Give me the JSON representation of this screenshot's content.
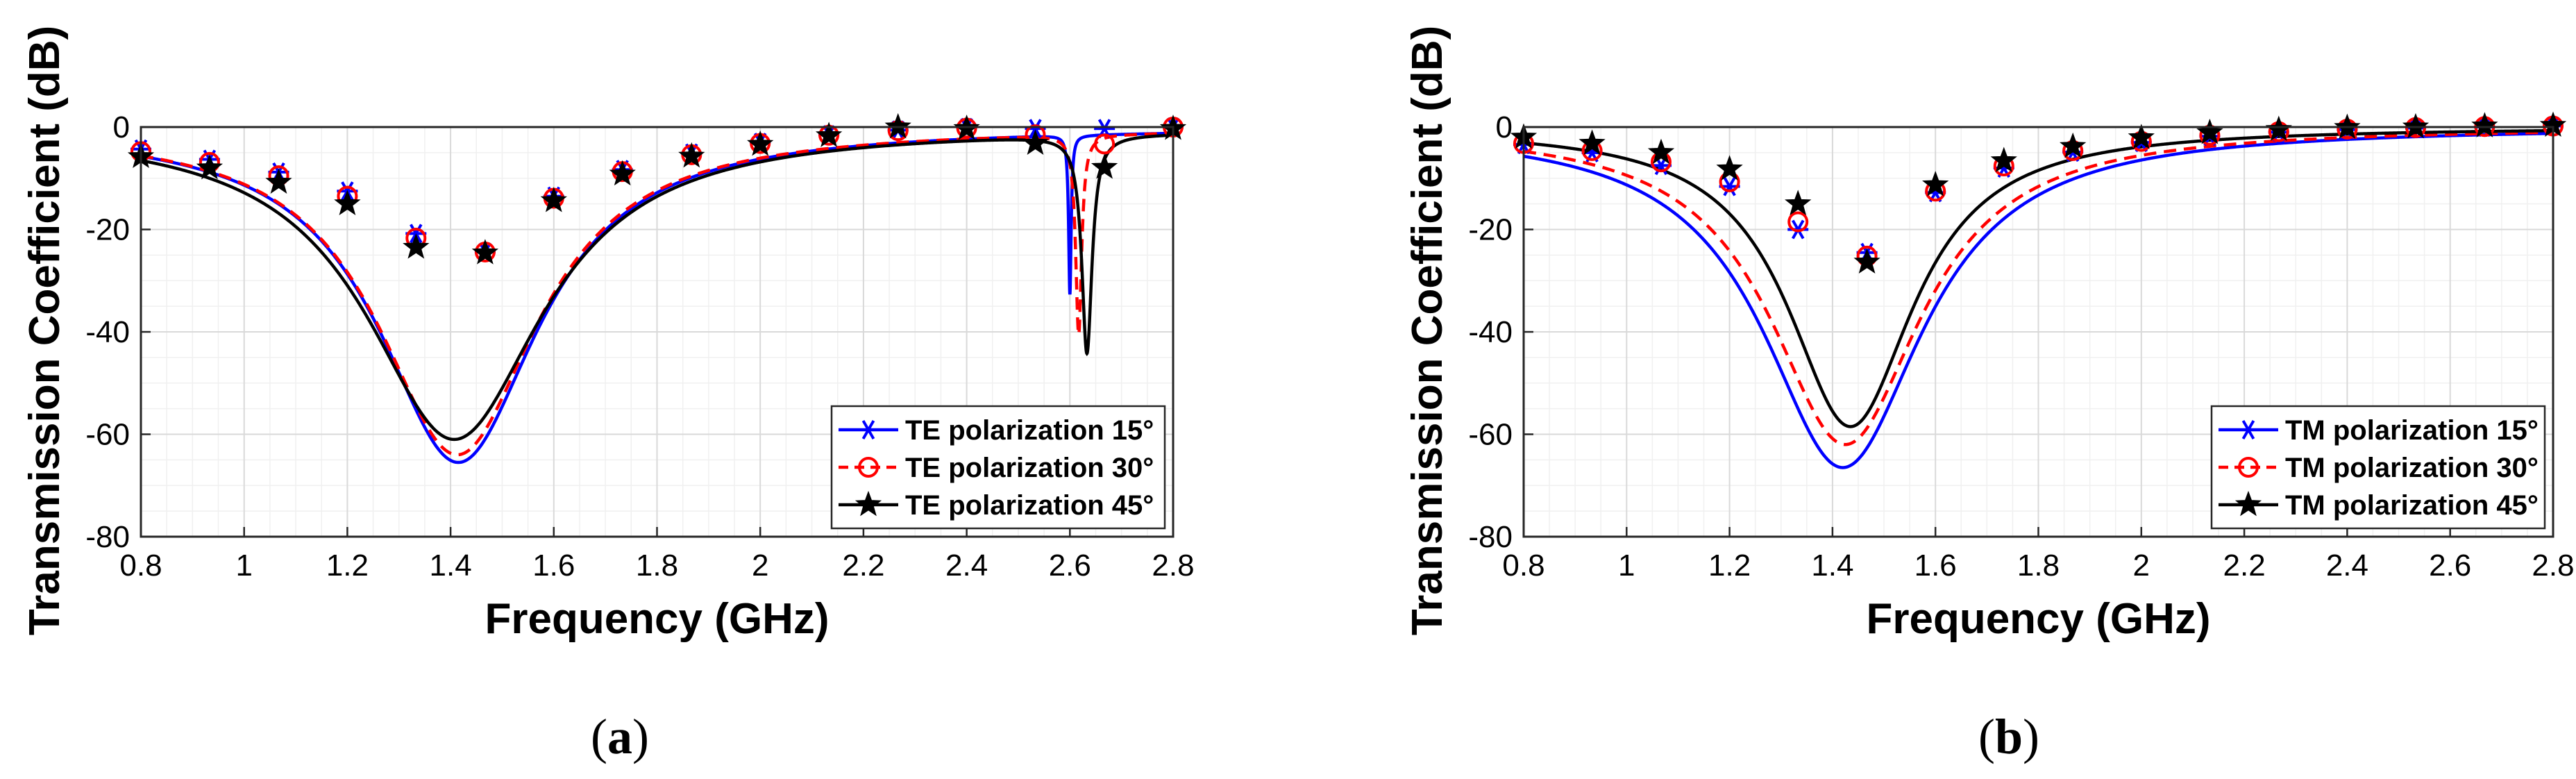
{
  "chart_data": [
    {
      "type": "line",
      "panel": "a",
      "caption": {
        "open": "(",
        "letter": "a",
        "close": ")"
      },
      "xlabel": "Frequency (GHz)",
      "ylabel": "Transmission Coefficient (dB)",
      "xlim": [
        0.8,
        2.8
      ],
      "ylim": [
        -80,
        0
      ],
      "xticks": [
        0.8,
        1,
        1.2,
        1.4,
        1.6,
        1.8,
        2,
        2.2,
        2.4,
        2.6,
        2.8
      ],
      "yticks": [
        0,
        -20,
        -40,
        -60,
        -80
      ],
      "grid": true,
      "legend_position": "bottom-right",
      "series": [
        {
          "name": "TE polarization 15°",
          "color": "#0000ff",
          "dash": "solid",
          "marker": "asterisk",
          "resonances": [
            {
              "f": 1.415,
              "depth": -65.5,
              "width": 0.19
            },
            {
              "f": 2.6,
              "depth": -31,
              "width": 0.003
            }
          ],
          "marker_points": [
            [
              0.8,
              -4.3
            ],
            [
              0.933,
              -6.3
            ],
            [
              1.067,
              -8.8
            ],
            [
              1.2,
              -12.5
            ],
            [
              1.333,
              -20.8
            ],
            [
              1.467,
              -24.4
            ],
            [
              1.6,
              -13.5
            ],
            [
              1.733,
              -8.3
            ],
            [
              1.867,
              -5.1
            ],
            [
              2,
              -3.0
            ],
            [
              2.133,
              -1.5
            ],
            [
              2.267,
              -0.6
            ],
            [
              2.4,
              -0.1
            ],
            [
              2.533,
              -0.3
            ],
            [
              2.667,
              -0.3
            ],
            [
              2.8,
              0
            ]
          ]
        },
        {
          "name": "TE polarization 30°",
          "color": "#ff0000",
          "dash": "dashed",
          "marker": "circle",
          "resonances": [
            {
              "f": 1.413,
              "depth": -64,
              "width": 0.19
            },
            {
              "f": 2.617,
              "depth": -39,
              "width": 0.007
            }
          ],
          "marker_points": [
            [
              0.8,
              -4.8
            ],
            [
              0.933,
              -6.9
            ],
            [
              1.067,
              -9.5
            ],
            [
              1.2,
              -13.5
            ],
            [
              1.333,
              -21.7
            ],
            [
              1.467,
              -24.4
            ],
            [
              1.6,
              -13.9
            ],
            [
              1.733,
              -8.7
            ],
            [
              1.867,
              -5.4
            ],
            [
              2,
              -3.2
            ],
            [
              2.133,
              -1.6
            ],
            [
              2.267,
              -0.7
            ],
            [
              2.4,
              -0.2
            ],
            [
              2.533,
              -1.5
            ],
            [
              2.667,
              -3.3
            ],
            [
              2.8,
              0
            ]
          ]
        },
        {
          "name": "TE polarization 45°",
          "color": "#000000",
          "dash": "solid",
          "marker": "star",
          "resonances": [
            {
              "f": 1.407,
              "depth": -61,
              "width": 0.21
            },
            {
              "f": 2.633,
              "depth": -42.5,
              "width": 0.012
            }
          ],
          "marker_points": [
            [
              0.8,
              -5.8
            ],
            [
              0.933,
              -8.0
            ],
            [
              1.067,
              -10.8
            ],
            [
              1.2,
              -15.0
            ],
            [
              1.333,
              -23.5
            ],
            [
              1.467,
              -24.6
            ],
            [
              1.6,
              -14.4
            ],
            [
              1.733,
              -9.2
            ],
            [
              1.867,
              -5.7
            ],
            [
              2,
              -3.4
            ],
            [
              2.133,
              -1.7
            ],
            [
              2.267,
              0
            ],
            [
              2.4,
              -0.3
            ],
            [
              2.533,
              -3.2
            ],
            [
              2.667,
              -7.9
            ],
            [
              2.8,
              -0.3
            ]
          ]
        }
      ]
    },
    {
      "type": "line",
      "panel": "b",
      "caption": {
        "open": "(",
        "letter": "b",
        "close": ")"
      },
      "xlabel": "Frequency (GHz)",
      "ylabel": "Transmission Coefficient (dB)",
      "xlim": [
        0.8,
        2.8
      ],
      "ylim": [
        -80,
        0
      ],
      "xticks": [
        0.8,
        1,
        1.2,
        1.4,
        1.6,
        1.8,
        2,
        2.2,
        2.4,
        2.6,
        2.8
      ],
      "yticks": [
        0,
        -20,
        -40,
        -60,
        -80
      ],
      "grid": true,
      "legend_position": "bottom-right",
      "series": [
        {
          "name": "TM polarization 15°",
          "color": "#0000ff",
          "dash": "solid",
          "marker": "asterisk",
          "resonances": [
            {
              "f": 1.42,
              "depth": -66.5,
              "width": 0.19
            }
          ],
          "marker_points": [
            [
              0.8,
              -3.4
            ],
            [
              0.933,
              -5.0
            ],
            [
              1.067,
              -7.5
            ],
            [
              1.2,
              -11.6
            ],
            [
              1.333,
              -20.0
            ],
            [
              1.467,
              -24.5
            ],
            [
              1.6,
              -12.8
            ],
            [
              1.733,
              -8.0
            ],
            [
              1.867,
              -4.9
            ],
            [
              2,
              -3.0
            ],
            [
              2.133,
              -1.8
            ],
            [
              2.267,
              -1.0
            ],
            [
              2.4,
              -0.5
            ],
            [
              2.533,
              -0.2
            ],
            [
              2.667,
              0
            ],
            [
              2.8,
              0.2
            ]
          ]
        },
        {
          "name": "TM polarization 30°",
          "color": "#ff0000",
          "dash": "dashed",
          "marker": "circle",
          "resonances": [
            {
              "f": 1.425,
              "depth": -62,
              "width": 0.18
            }
          ],
          "marker_points": [
            [
              0.8,
              -3.2
            ],
            [
              0.933,
              -4.6
            ],
            [
              1.067,
              -6.8
            ],
            [
              1.2,
              -10.7
            ],
            [
              1.333,
              -18.5
            ],
            [
              1.467,
              -25.2
            ],
            [
              1.6,
              -12.5
            ],
            [
              1.733,
              -7.6
            ],
            [
              1.867,
              -4.6
            ],
            [
              2,
              -2.8
            ],
            [
              2.133,
              -1.6
            ],
            [
              2.267,
              -0.9
            ],
            [
              2.4,
              -0.4
            ],
            [
              2.533,
              -0.1
            ],
            [
              2.667,
              0.1
            ],
            [
              2.8,
              0.2
            ]
          ]
        },
        {
          "name": "TM polarization 45°",
          "color": "#000000",
          "dash": "solid",
          "marker": "star",
          "resonances": [
            {
              "f": 1.435,
              "depth": -58.5,
              "width": 0.15
            }
          ],
          "marker_points": [
            [
              0.8,
              -2.0
            ],
            [
              0.933,
              -3.2
            ],
            [
              1.067,
              -5.0
            ],
            [
              1.2,
              -8.2
            ],
            [
              1.333,
              -15.0
            ],
            [
              1.467,
              -26.4
            ],
            [
              1.6,
              -11.3
            ],
            [
              1.733,
              -6.6
            ],
            [
              1.867,
              -3.8
            ],
            [
              2,
              -2.1
            ],
            [
              2.133,
              -1.1
            ],
            [
              2.267,
              -0.5
            ],
            [
              2.4,
              -0.1
            ],
            [
              2.533,
              0
            ],
            [
              2.667,
              0.2
            ],
            [
              2.8,
              0.3
            ]
          ]
        }
      ]
    }
  ]
}
